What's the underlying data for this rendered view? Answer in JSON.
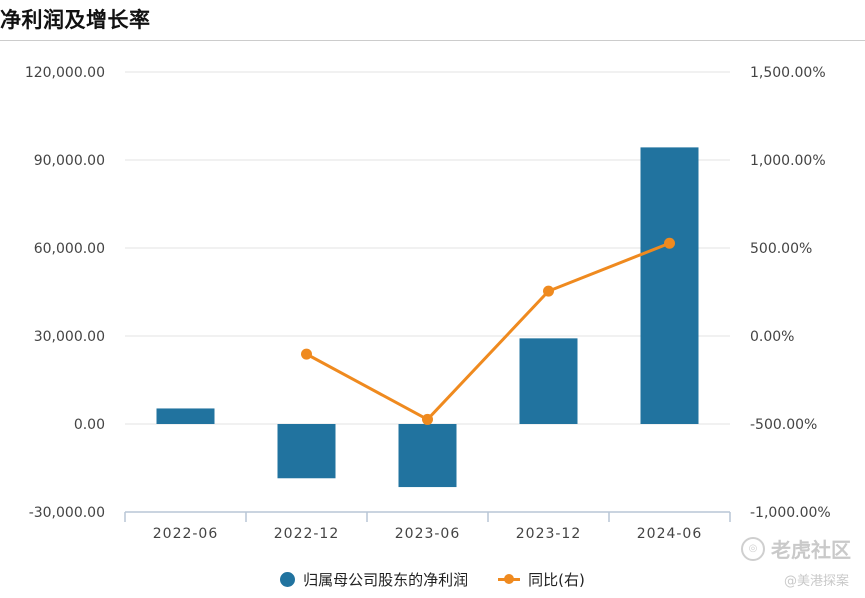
{
  "title": "净利润及增长率",
  "watermark": {
    "brand": "老虎社区",
    "user": "@美港探案"
  },
  "colors": {
    "bar": "#21739f",
    "line": "#ef8a1f",
    "grid": "#e3e3e3",
    "axis": "#b8c6d6",
    "tick": "#444444"
  },
  "chart_data": {
    "type": "bar",
    "categories": [
      "2022-06",
      "2022-12",
      "2023-06",
      "2023-12",
      "2024-06"
    ],
    "y_left": {
      "ticks": [
        "120,000.00",
        "90,000.00",
        "60,000.00",
        "30,000.00",
        "0.00",
        "-30,000.00"
      ],
      "range": [
        -30000,
        120000
      ]
    },
    "y_right": {
      "ticks": [
        "1,500.00%",
        "1,000.00%",
        "500.00%",
        "0.00%",
        "-500.00%",
        "-1,000.00%"
      ],
      "range": [
        -1000,
        1500
      ]
    },
    "series": [
      {
        "name": "归属母公司股东的净利润",
        "type": "bar",
        "axis": "left",
        "values": [
          5300,
          -18500,
          -21500,
          29200,
          94300
        ]
      },
      {
        "name": "同比(右)",
        "type": "line",
        "axis": "right",
        "values": [
          null,
          -103,
          -474,
          255,
          527
        ]
      }
    ],
    "legend": "bottom-center",
    "grid": true
  }
}
